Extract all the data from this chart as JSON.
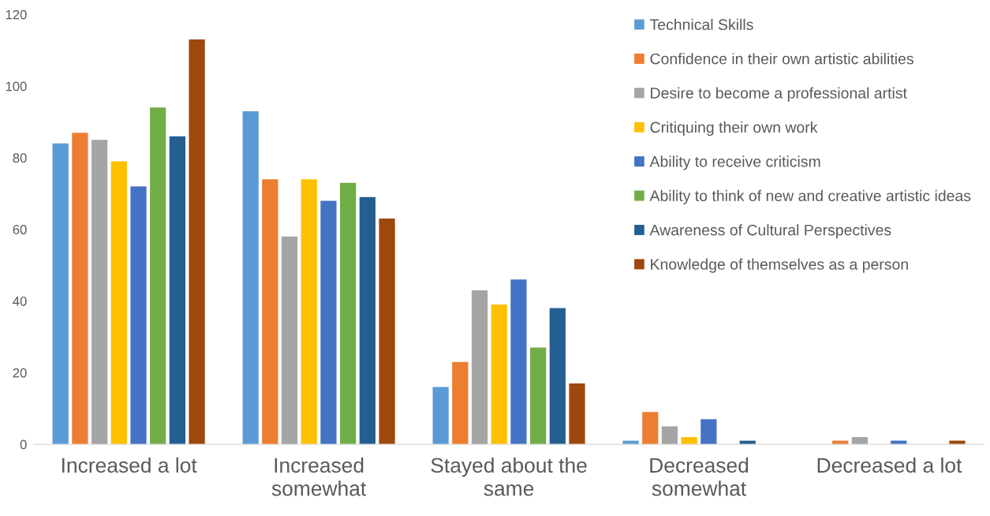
{
  "chart_data": {
    "type": "bar",
    "categories": [
      "Increased a lot",
      "Increased somewhat",
      "Stayed about the same",
      "Decreased somewhat",
      "Decreased a lot"
    ],
    "series": [
      {
        "name": "Technical Skills",
        "color": "#5b9bd5",
        "values": [
          84,
          93,
          16,
          1,
          0
        ]
      },
      {
        "name": "Confidence in their own artistic abilities",
        "color": "#ed7d31",
        "values": [
          87,
          74,
          23,
          9,
          1
        ]
      },
      {
        "name": "Desire to become a professional artist",
        "color": "#a5a5a5",
        "values": [
          85,
          58,
          43,
          5,
          2
        ]
      },
      {
        "name": "Critiquing their own work",
        "color": "#ffc000",
        "values": [
          79,
          74,
          39,
          2,
          0
        ]
      },
      {
        "name": "Ability to receive criticism",
        "color": "#4472c4",
        "values": [
          72,
          68,
          46,
          7,
          1
        ]
      },
      {
        "name": "Ability to think of new and creative artistic ideas",
        "color": "#70ad47",
        "values": [
          94,
          73,
          27,
          0,
          0
        ]
      },
      {
        "name": "Awareness of Cultural Perspectives",
        "color": "#255e91",
        "values": [
          86,
          69,
          38,
          1,
          0
        ]
      },
      {
        "name": "Knowledge of themselves as a person",
        "color": "#9e480e",
        "values": [
          113,
          63,
          17,
          0,
          1
        ]
      }
    ],
    "ylim": [
      0,
      120
    ],
    "yticks": [
      0,
      20,
      40,
      60,
      80,
      100,
      120
    ],
    "grid": false,
    "legend": "top right"
  }
}
